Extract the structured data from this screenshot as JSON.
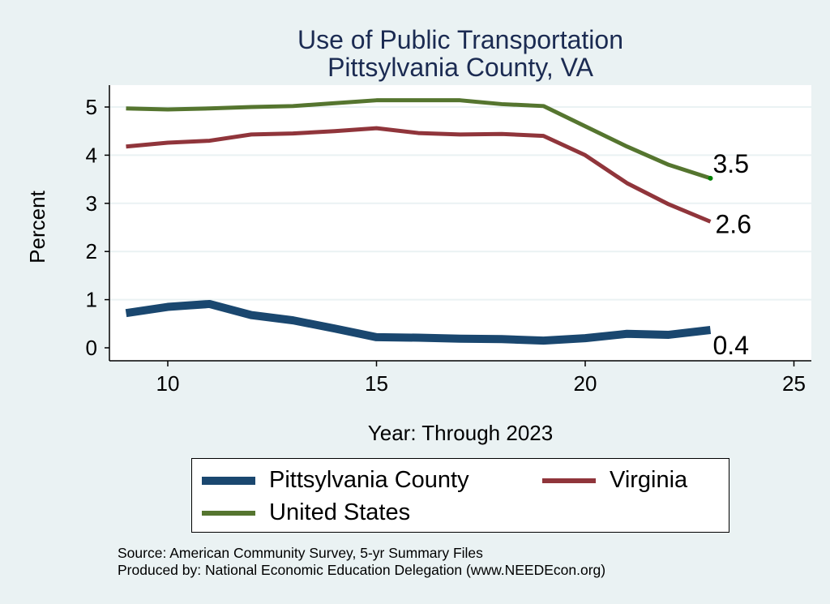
{
  "chart_data": {
    "type": "line",
    "title": "Use of Public Transportation",
    "subtitle": "Pittsylvania County, VA",
    "xlabel": "Year: Through 2023",
    "ylabel": "Percent",
    "xlim": [
      9,
      25
    ],
    "ylim": [
      0,
      5
    ],
    "x_ticks": [
      10,
      15,
      20,
      25
    ],
    "y_ticks": [
      0,
      1,
      2,
      3,
      4,
      5
    ],
    "grid": true,
    "x": [
      9,
      10,
      11,
      12,
      13,
      14,
      15,
      16,
      17,
      18,
      19,
      20,
      21,
      22,
      23
    ],
    "series": [
      {
        "name": "Pittsylvania County",
        "color": "#1a476f",
        "end_label": "0.4",
        "values": [
          0.72,
          0.85,
          0.91,
          0.68,
          0.57,
          0.4,
          0.22,
          0.21,
          0.19,
          0.18,
          0.15,
          0.2,
          0.29,
          0.27,
          0.37
        ]
      },
      {
        "name": "Virginia",
        "color": "#90353b",
        "end_label": "2.6",
        "values": [
          4.18,
          4.26,
          4.3,
          4.43,
          4.45,
          4.5,
          4.56,
          4.46,
          4.43,
          4.44,
          4.4,
          4.0,
          3.42,
          2.98,
          2.62
        ]
      },
      {
        "name": "United States",
        "color": "#55752f",
        "end_label": "3.5",
        "values": [
          4.97,
          4.95,
          4.97,
          5.0,
          5.02,
          5.08,
          5.14,
          5.14,
          5.14,
          5.06,
          5.02,
          4.6,
          4.18,
          3.8,
          3.52
        ]
      }
    ],
    "legend_position": "bottom"
  },
  "legend": {
    "items": [
      "Pittsylvania County",
      "Virginia",
      "United States"
    ]
  },
  "footer": {
    "source": "Source: American Community Survey, 5-yr Summary Files",
    "produced_by": "Produced by: National Economic Education Delegation (www.NEEDEcon.org)"
  }
}
